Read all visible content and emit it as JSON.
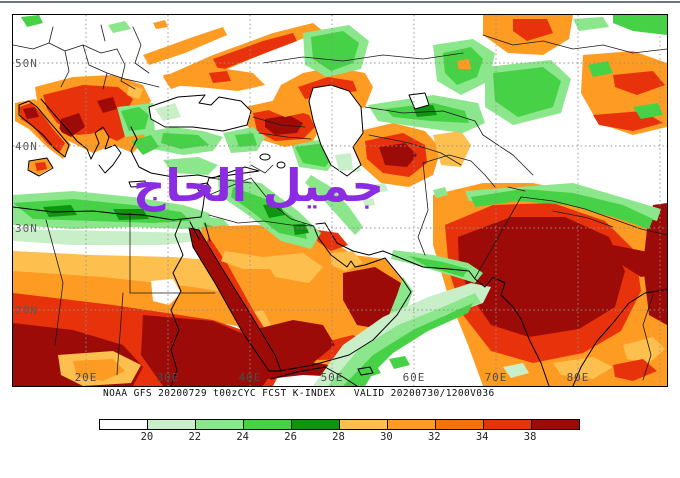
{
  "map": {
    "lat_labels": [
      "50N",
      "40N",
      "30N",
      "20N"
    ],
    "lon_labels": [
      "20E",
      "30E",
      "40E",
      "50E",
      "60E",
      "70E",
      "80E"
    ],
    "watermark": "جميل الحاج",
    "watermark_color": "#8b2be2"
  },
  "caption": {
    "text": "NOAA GFS 20200729 t00zCYC FCST K-INDEX   VALID 20200730/1200V036"
  },
  "colorbar": {
    "labels": [
      "20",
      "22",
      "24",
      "26",
      "28",
      "30",
      "32",
      "34",
      "38"
    ],
    "segments": [
      {
        "range": "<20",
        "color": "#ffffff"
      },
      {
        "range": "20-22",
        "color": "#c8efc8"
      },
      {
        "range": "22-24",
        "color": "#8ce68c"
      },
      {
        "range": "24-26",
        "color": "#46d146"
      },
      {
        "range": "26-28",
        "color": "#0f9310"
      },
      {
        "range": "28-30",
        "color": "#fdc04f"
      },
      {
        "range": "30-32",
        "color": "#fe9b22"
      },
      {
        "range": "32-34",
        "color": "#f4720a"
      },
      {
        "range": "34-38",
        "color": "#e8320c"
      },
      {
        "range": ">38",
        "color": "#9d0b08"
      }
    ]
  },
  "chart_data": {
    "type": "heatmap",
    "title": "NOAA GFS 20200729 t00zCYC FCST K-INDEX   VALID 20200730/1200V036",
    "variable": "K-Index (atmospheric instability)",
    "x_ticks": [
      "20E",
      "30E",
      "40E",
      "50E",
      "60E",
      "70E",
      "80E"
    ],
    "y_ticks": [
      "50N",
      "40N",
      "30N",
      "20N"
    ],
    "x_range_deg_east": [
      11,
      91
    ],
    "y_range_deg_north": [
      11,
      56
    ],
    "grid": "dotted graticule every 10 degrees",
    "legend_position": "bottom colorbar",
    "colorbar_levels": [
      20,
      22,
      24,
      26,
      28,
      30,
      32,
      34,
      38
    ],
    "colorbar_colors": [
      "#ffffff",
      "#c8efc8",
      "#8ce68c",
      "#46d146",
      "#0f9310",
      "#fdc04f",
      "#fe9b22",
      "#f4720a",
      "#e8320c",
      "#9d0b08"
    ],
    "regions": [
      {
        "area": "Mediterranean Sea, Greece, western Turkey, central Iran, Afghanistan, northern Europe, Tibet interior",
        "k_index": "<20"
      },
      {
        "area": "Libyan-Egyptian coast band, eastern Turkey, Iraq into Kuwait, Uzbekistan, Himalayan arc, Arabian Sea corridor toward Gujarat, Oman coast",
        "k_index": "20-28"
      },
      {
        "area": "Balkans, Italy, Ukraine-Volga streaks, east of Caspian (Turkmenistan), central Arabia, Sahara belt, Tarim/Tibet rim, southern India",
        "k_index": "28-34"
      },
      {
        "area": "Caucasus, Sudan and Chad, western Arabia, Bay of Bengal rim",
        "k_index": "34-38"
      },
      {
        "area": "Red Sea, Yemen, Oman interior, Sudan core, northern India and Pakistan",
        "k_index": ">38"
      }
    ]
  }
}
